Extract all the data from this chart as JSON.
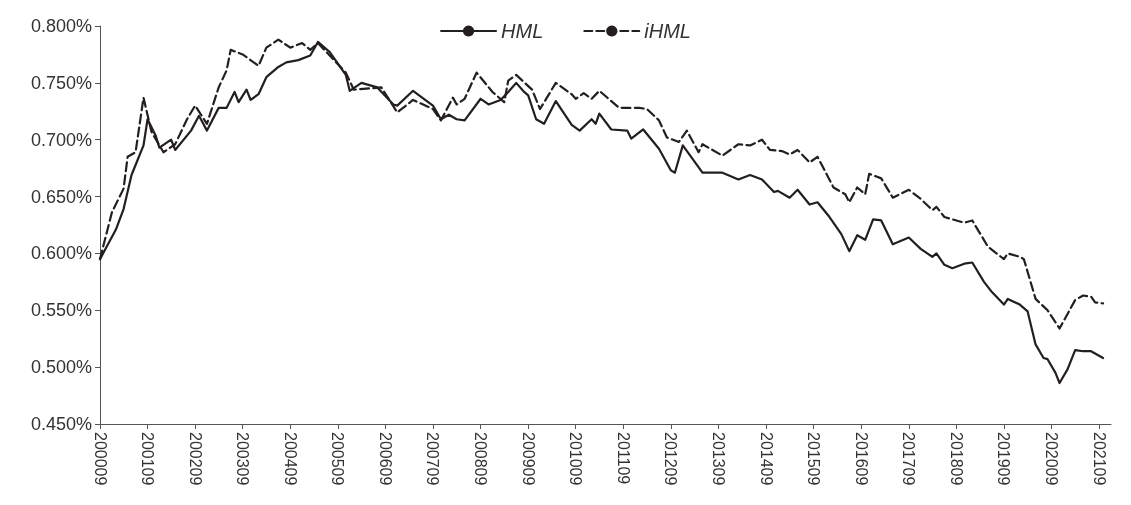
{
  "chart_data": {
    "type": "line",
    "series": [
      {
        "name": "HML",
        "color": "#231f20",
        "line_style": "solid",
        "x": [
          "2000-09",
          "2001-01",
          "2001-03",
          "2001-05",
          "2001-08",
          "2001-09",
          "2001-11",
          "2001-12",
          "2002-03",
          "2002-04",
          "2002-08",
          "2002-10",
          "2002-12",
          "2003-03",
          "2003-05",
          "2003-07",
          "2003-08",
          "2003-10",
          "2003-11",
          "2004-01",
          "2004-03",
          "2004-06",
          "2004-08",
          "2004-11",
          "2005-02",
          "2005-04",
          "2005-07",
          "2005-11",
          "2005-12",
          "2006-03",
          "2006-07",
          "2006-11",
          "2006-12",
          "2007-04",
          "2007-09",
          "2007-11",
          "2008-01",
          "2008-03",
          "2008-05",
          "2008-09",
          "2008-11",
          "2009-02",
          "2009-04",
          "2009-06",
          "2009-08",
          "2009-09",
          "2009-11",
          "2010-01",
          "2010-04",
          "2010-08",
          "2010-10",
          "2011-01",
          "2011-02",
          "2011-03",
          "2011-06",
          "2011-10",
          "2011-11",
          "2012-02",
          "2012-06",
          "2012-09",
          "2012-10",
          "2012-12",
          "2013-05",
          "2013-10",
          "2014-02",
          "2014-05",
          "2014-08",
          "2014-11",
          "2014-12",
          "2015-03",
          "2015-05",
          "2015-08",
          "2015-10",
          "2016-01",
          "2016-04",
          "2016-06",
          "2016-08",
          "2016-10",
          "2016-12",
          "2017-02",
          "2017-05",
          "2017-09",
          "2017-12",
          "2018-03",
          "2018-04",
          "2018-06",
          "2018-08",
          "2018-11",
          "2019-01",
          "2019-04",
          "2019-06",
          "2019-09",
          "2019-10",
          "2020-01",
          "2020-03",
          "2020-05",
          "2020-07",
          "2020-08",
          "2020-10",
          "2020-11",
          "2021-01",
          "2021-03",
          "2021-05",
          "2021-07",
          "2021-10"
        ],
        "values": [
          0.595,
          0.621,
          0.639,
          0.669,
          0.695,
          0.718,
          0.704,
          0.693,
          0.7,
          0.691,
          0.708,
          0.721,
          0.708,
          0.728,
          0.728,
          0.742,
          0.733,
          0.744,
          0.735,
          0.74,
          0.755,
          0.764,
          0.768,
          0.77,
          0.774,
          0.786,
          0.777,
          0.757,
          0.743,
          0.75,
          0.746,
          0.731,
          0.73,
          0.743,
          0.73,
          0.718,
          0.722,
          0.718,
          0.717,
          0.736,
          0.731,
          0.735,
          0.742,
          0.75,
          0.742,
          0.739,
          0.718,
          0.714,
          0.734,
          0.713,
          0.708,
          0.718,
          0.714,
          0.723,
          0.709,
          0.708,
          0.701,
          0.709,
          0.692,
          0.673,
          0.671,
          0.695,
          0.671,
          0.671,
          0.665,
          0.669,
          0.665,
          0.654,
          0.655,
          0.649,
          0.656,
          0.643,
          0.645,
          0.632,
          0.617,
          0.602,
          0.616,
          0.612,
          0.63,
          0.629,
          0.608,
          0.614,
          0.604,
          0.597,
          0.6,
          0.59,
          0.587,
          0.591,
          0.592,
          0.575,
          0.566,
          0.555,
          0.56,
          0.555,
          0.549,
          0.52,
          0.508,
          0.507,
          0.495,
          0.486,
          0.498,
          0.515,
          0.514,
          0.514,
          0.508
        ]
      },
      {
        "name": "iHML",
        "color": "#231f20",
        "line_style": "dashed",
        "x": [
          "2000-09",
          "2000-12",
          "2001-03",
          "2001-04",
          "2001-06",
          "2001-08",
          "2001-10",
          "2002-01",
          "2002-04",
          "2002-07",
          "2002-09",
          "2002-12",
          "2003-03",
          "2003-05",
          "2003-06",
          "2003-09",
          "2004-01",
          "2004-03",
          "2004-06",
          "2004-09",
          "2004-12",
          "2005-02",
          "2005-04",
          "2005-11",
          "2006-01",
          "2006-08",
          "2006-12",
          "2007-04",
          "2007-09",
          "2007-11",
          "2008-02",
          "2008-03",
          "2008-05",
          "2008-08",
          "2008-12",
          "2009-03",
          "2009-04",
          "2009-06",
          "2009-10",
          "2009-12",
          "2010-04",
          "2010-08",
          "2010-09",
          "2010-11",
          "2011-01",
          "2011-03",
          "2011-08",
          "2012-01",
          "2012-03",
          "2012-06",
          "2012-08",
          "2012-11",
          "2013-01",
          "2013-04",
          "2013-05",
          "2013-10",
          "2014-02",
          "2014-05",
          "2014-08",
          "2014-10",
          "2015-01",
          "2015-03",
          "2015-05",
          "2015-08",
          "2015-10",
          "2016-02",
          "2016-05",
          "2016-06",
          "2016-08",
          "2016-10",
          "2016-11",
          "2017-02",
          "2017-05",
          "2017-09",
          "2017-12",
          "2018-03",
          "2018-04",
          "2018-06",
          "2018-09",
          "2018-11",
          "2019-01",
          "2019-05",
          "2019-09",
          "2019-10",
          "2020-01",
          "2020-02",
          "2020-05",
          "2020-08",
          "2020-11",
          "2021-03",
          "2021-05",
          "2021-07",
          "2021-08",
          "2021-10"
        ],
        "values": [
          0.595,
          0.636,
          0.657,
          0.685,
          0.689,
          0.737,
          0.707,
          0.689,
          0.696,
          0.718,
          0.73,
          0.714,
          0.746,
          0.761,
          0.779,
          0.775,
          0.765,
          0.781,
          0.788,
          0.781,
          0.785,
          0.779,
          0.785,
          0.759,
          0.744,
          0.746,
          0.724,
          0.735,
          0.727,
          0.717,
          0.737,
          0.731,
          0.736,
          0.759,
          0.742,
          0.733,
          0.752,
          0.757,
          0.744,
          0.727,
          0.75,
          0.74,
          0.736,
          0.741,
          0.736,
          0.743,
          0.728,
          0.728,
          0.727,
          0.717,
          0.702,
          0.698,
          0.708,
          0.689,
          0.696,
          0.686,
          0.696,
          0.695,
          0.7,
          0.691,
          0.69,
          0.687,
          0.691,
          0.68,
          0.685,
          0.658,
          0.652,
          0.645,
          0.658,
          0.652,
          0.67,
          0.666,
          0.649,
          0.656,
          0.648,
          0.638,
          0.641,
          0.632,
          0.629,
          0.627,
          0.629,
          0.606,
          0.595,
          0.6,
          0.597,
          0.595,
          0.56,
          0.55,
          0.534,
          0.559,
          0.563,
          0.562,
          0.557,
          0.556
        ]
      }
    ],
    "xlim": [
      "2000-09",
      "2021-12"
    ],
    "xticks": [
      {
        "value": "2000-09",
        "label": "200009"
      },
      {
        "value": "2001-09",
        "label": "200109"
      },
      {
        "value": "2002-09",
        "label": "200209"
      },
      {
        "value": "2003-09",
        "label": "200309"
      },
      {
        "value": "2004-09",
        "label": "200409"
      },
      {
        "value": "2005-09",
        "label": "200509"
      },
      {
        "value": "2006-09",
        "label": "200609"
      },
      {
        "value": "2007-09",
        "label": "200709"
      },
      {
        "value": "2008-09",
        "label": "200809"
      },
      {
        "value": "2009-09",
        "label": "200909"
      },
      {
        "value": "2010-09",
        "label": "201009"
      },
      {
        "value": "2011-09",
        "label": "201109"
      },
      {
        "value": "2012-09",
        "label": "201209"
      },
      {
        "value": "2013-09",
        "label": "201309"
      },
      {
        "value": "2014-09",
        "label": "201409"
      },
      {
        "value": "2015-09",
        "label": "201509"
      },
      {
        "value": "2016-09",
        "label": "201609"
      },
      {
        "value": "2017-09",
        "label": "201709"
      },
      {
        "value": "2018-09",
        "label": "201809"
      },
      {
        "value": "2019-09",
        "label": "201909"
      },
      {
        "value": "2020-09",
        "label": "202009"
      },
      {
        "value": "2021-09",
        "label": "202109"
      }
    ],
    "ylim": [
      0.45,
      0.8
    ],
    "yticks": [
      {
        "value": 0.45,
        "label": "0.450%"
      },
      {
        "value": 0.5,
        "label": "0.500%"
      },
      {
        "value": 0.55,
        "label": "0.550%"
      },
      {
        "value": 0.6,
        "label": "0.600%"
      },
      {
        "value": 0.65,
        "label": "0.650%"
      },
      {
        "value": 0.7,
        "label": "0.700%"
      },
      {
        "value": 0.75,
        "label": "0.750%"
      },
      {
        "value": 0.8,
        "label": "0.800%"
      }
    ],
    "grid": false,
    "legend": "top",
    "marker": "none"
  }
}
